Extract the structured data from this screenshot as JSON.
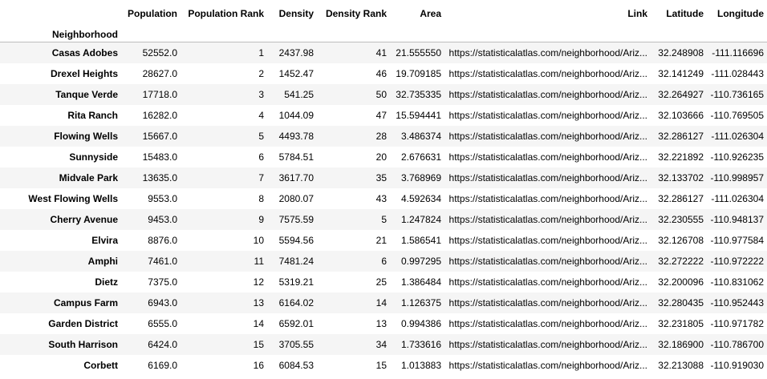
{
  "columns": {
    "population": "Population",
    "population_rank": "Population Rank",
    "density": "Density",
    "density_rank": "Density Rank",
    "area": "Area",
    "link": "Link",
    "latitude": "Latitude",
    "longitude": "Longitude"
  },
  "index_name": "Neighborhood",
  "rows": [
    {
      "name": "Casas Adobes",
      "population": "52552.0",
      "population_rank": "1",
      "density": "2437.98",
      "density_rank": "41",
      "area": "21.555550",
      "link": "https://statisticalatlas.com/neighborhood/Ariz...",
      "latitude": "32.248908",
      "longitude": "-111.116696"
    },
    {
      "name": "Drexel Heights",
      "population": "28627.0",
      "population_rank": "2",
      "density": "1452.47",
      "density_rank": "46",
      "area": "19.709185",
      "link": "https://statisticalatlas.com/neighborhood/Ariz...",
      "latitude": "32.141249",
      "longitude": "-111.028443"
    },
    {
      "name": "Tanque Verde",
      "population": "17718.0",
      "population_rank": "3",
      "density": "541.25",
      "density_rank": "50",
      "area": "32.735335",
      "link": "https://statisticalatlas.com/neighborhood/Ariz...",
      "latitude": "32.264927",
      "longitude": "-110.736165"
    },
    {
      "name": "Rita Ranch",
      "population": "16282.0",
      "population_rank": "4",
      "density": "1044.09",
      "density_rank": "47",
      "area": "15.594441",
      "link": "https://statisticalatlas.com/neighborhood/Ariz...",
      "latitude": "32.103666",
      "longitude": "-110.769505"
    },
    {
      "name": "Flowing Wells",
      "population": "15667.0",
      "population_rank": "5",
      "density": "4493.78",
      "density_rank": "28",
      "area": "3.486374",
      "link": "https://statisticalatlas.com/neighborhood/Ariz...",
      "latitude": "32.286127",
      "longitude": "-111.026304"
    },
    {
      "name": "Sunnyside",
      "population": "15483.0",
      "population_rank": "6",
      "density": "5784.51",
      "density_rank": "20",
      "area": "2.676631",
      "link": "https://statisticalatlas.com/neighborhood/Ariz...",
      "latitude": "32.221892",
      "longitude": "-110.926235"
    },
    {
      "name": "Midvale Park",
      "population": "13635.0",
      "population_rank": "7",
      "density": "3617.70",
      "density_rank": "35",
      "area": "3.768969",
      "link": "https://statisticalatlas.com/neighborhood/Ariz...",
      "latitude": "32.133702",
      "longitude": "-110.998957"
    },
    {
      "name": "West Flowing Wells",
      "population": "9553.0",
      "population_rank": "8",
      "density": "2080.07",
      "density_rank": "43",
      "area": "4.592634",
      "link": "https://statisticalatlas.com/neighborhood/Ariz...",
      "latitude": "32.286127",
      "longitude": "-111.026304"
    },
    {
      "name": "Cherry Avenue",
      "population": "9453.0",
      "population_rank": "9",
      "density": "7575.59",
      "density_rank": "5",
      "area": "1.247824",
      "link": "https://statisticalatlas.com/neighborhood/Ariz...",
      "latitude": "32.230555",
      "longitude": "-110.948137"
    },
    {
      "name": "Elvira",
      "population": "8876.0",
      "population_rank": "10",
      "density": "5594.56",
      "density_rank": "21",
      "area": "1.586541",
      "link": "https://statisticalatlas.com/neighborhood/Ariz...",
      "latitude": "32.126708",
      "longitude": "-110.977584"
    },
    {
      "name": "Amphi",
      "population": "7461.0",
      "population_rank": "11",
      "density": "7481.24",
      "density_rank": "6",
      "area": "0.997295",
      "link": "https://statisticalatlas.com/neighborhood/Ariz...",
      "latitude": "32.272222",
      "longitude": "-110.972222"
    },
    {
      "name": "Dietz",
      "population": "7375.0",
      "population_rank": "12",
      "density": "5319.21",
      "density_rank": "25",
      "area": "1.386484",
      "link": "https://statisticalatlas.com/neighborhood/Ariz...",
      "latitude": "32.200096",
      "longitude": "-110.831062"
    },
    {
      "name": "Campus Farm",
      "population": "6943.0",
      "population_rank": "13",
      "density": "6164.02",
      "density_rank": "14",
      "area": "1.126375",
      "link": "https://statisticalatlas.com/neighborhood/Ariz...",
      "latitude": "32.280435",
      "longitude": "-110.952443"
    },
    {
      "name": "Garden District",
      "population": "6555.0",
      "population_rank": "14",
      "density": "6592.01",
      "density_rank": "13",
      "area": "0.994386",
      "link": "https://statisticalatlas.com/neighborhood/Ariz...",
      "latitude": "32.231805",
      "longitude": "-110.971782"
    },
    {
      "name": "South Harrison",
      "population": "6424.0",
      "population_rank": "15",
      "density": "3705.55",
      "density_rank": "34",
      "area": "1.733616",
      "link": "https://statisticalatlas.com/neighborhood/Ariz...",
      "latitude": "32.186900",
      "longitude": "-110.786700"
    },
    {
      "name": "Corbett",
      "population": "6169.0",
      "population_rank": "16",
      "density": "6084.53",
      "density_rank": "15",
      "area": "1.013883",
      "link": "https://statisticalatlas.com/neighborhood/Ariz...",
      "latitude": "32.213088",
      "longitude": "-110.919030"
    }
  ]
}
